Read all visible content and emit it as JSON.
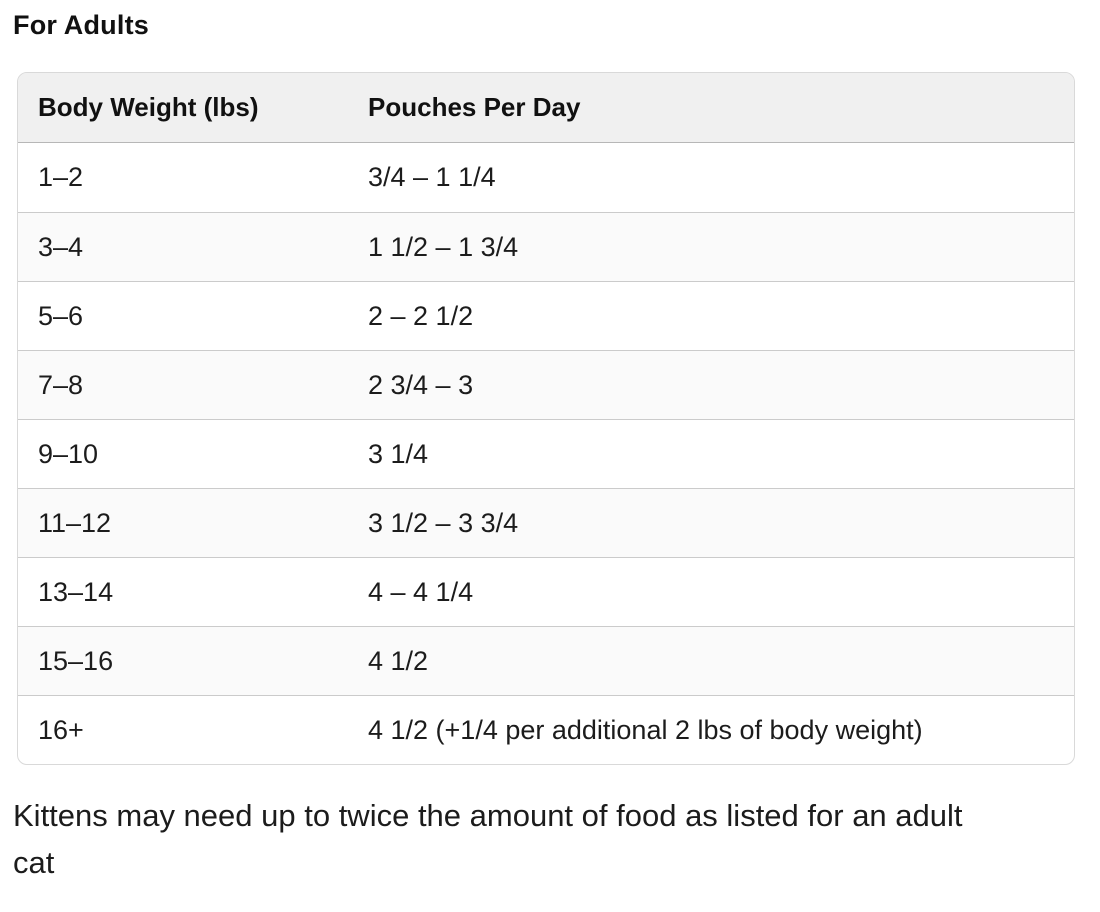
{
  "page": {
    "title": "For Adults",
    "footer_note": "Kittens may need up to twice the amount of food as listed for an adult cat"
  },
  "table": {
    "columns": [
      {
        "label": "Body Weight (lbs)"
      },
      {
        "label": "Pouches Per Day"
      }
    ],
    "rows": [
      {
        "weight": "1–2",
        "pouches": "3/4 – 1 1/4"
      },
      {
        "weight": "3–4",
        "pouches": "1 1/2 – 1 3/4"
      },
      {
        "weight": "5–6",
        "pouches": "2 – 2 1/2"
      },
      {
        "weight": "7–8",
        "pouches": "2 3/4 – 3"
      },
      {
        "weight": "9–10",
        "pouches": "3 1/4"
      },
      {
        "weight": "11–12",
        "pouches": "3 1/2 – 3 3/4"
      },
      {
        "weight": "13–14",
        "pouches": "4 – 4 1/4"
      },
      {
        "weight": "15–16",
        "pouches": "4 1/2"
      },
      {
        "weight": "16+",
        "pouches": "4 1/2 (+1/4 per additional 2 lbs of body weight)"
      }
    ]
  },
  "theme": {
    "header_bg": "#f0f0f0",
    "row_alt_bg": "#fafafa",
    "border_outer": "#d9d9d9",
    "header_border": "#b7b7b7",
    "row_border": "#cbcbcb"
  }
}
